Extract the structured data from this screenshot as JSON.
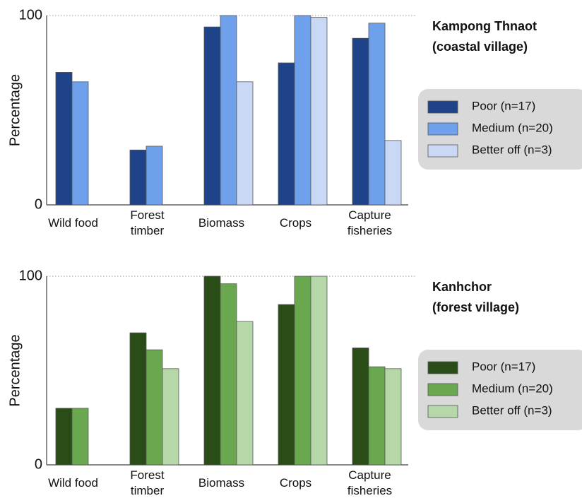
{
  "chart_data": [
    {
      "type": "bar",
      "title": "Kampong Thnaot",
      "subtitle": "(coastal village)",
      "ylabel": "Percentage",
      "categories": [
        "Wild food",
        "Forest timber",
        "Biomass",
        "Crops",
        "Capture fisheries"
      ],
      "series": [
        {
          "name": "Poor (n=17)",
          "color": "#1f4388",
          "values": [
            70,
            29,
            94,
            75,
            88
          ]
        },
        {
          "name": "Medium (n=20)",
          "color": "#6ea0ec",
          "values": [
            65,
            31,
            100,
            100,
            96
          ]
        },
        {
          "name": "Better off (n=3)",
          "color": "#c9d9f5",
          "values": [
            null,
            null,
            65,
            99,
            34
          ]
        }
      ],
      "ylim": [
        0,
        100
      ],
      "yticks": [
        0,
        100
      ],
      "grid": true,
      "legend": "right"
    },
    {
      "type": "bar",
      "title": "Kanhchor",
      "subtitle": "(forest village)",
      "ylabel": "Percentage",
      "categories": [
        "Wild food",
        "Forest timber",
        "Biomass",
        "Crops",
        "Capture fisheries"
      ],
      "series": [
        {
          "name": "Poor (n=17)",
          "color": "#2a4d17",
          "values": [
            30,
            70,
            100,
            85,
            62
          ]
        },
        {
          "name": "Medium (n=20)",
          "color": "#6aa84f",
          "values": [
            30,
            61,
            96,
            100,
            52
          ]
        },
        {
          "name": "Better off (n=3)",
          "color": "#b6d7a8",
          "values": [
            null,
            51,
            76,
            100,
            51
          ]
        }
      ],
      "ylim": [
        0,
        100
      ],
      "yticks": [
        0,
        100
      ],
      "grid": true,
      "legend": "right"
    }
  ]
}
